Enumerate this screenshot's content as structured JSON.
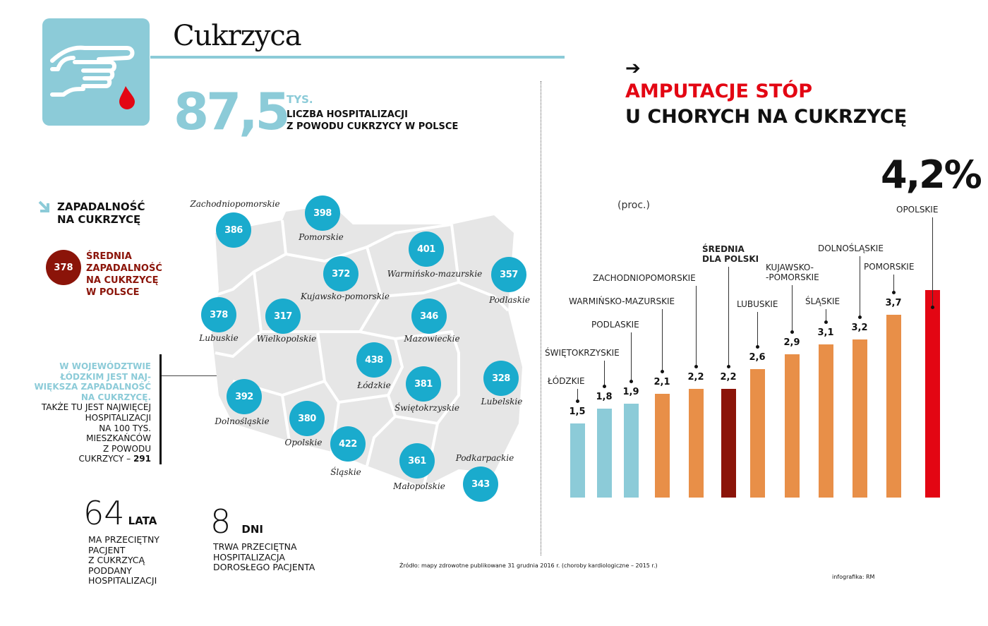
{
  "header": {
    "title": "Cukrzyca",
    "icon": "finger-blood-drop-icon"
  },
  "hospitalizations": {
    "value": "87,5",
    "unit": "TYS.",
    "desc_line1": "LICZBA HOSPITALIZACJI",
    "desc_line2": "Z POWODU CUKRZYCY W POLSCE"
  },
  "legend": {
    "title_line1": "ZAPADALNOŚĆ",
    "title_line2": "NA CUKRZYCĘ",
    "avg_value": "378",
    "avg_l1": "ŚREDNIA",
    "avg_l2": "ZAPADALNOŚĆ",
    "avg_l3": "NA CUKRZYCĘ",
    "avg_l4": "W POLSCE"
  },
  "note": {
    "hl1": "W WOJEWÓDZTWIE",
    "hl2": "ŁÓDZKIM  JEST NAJ-",
    "hl3": "WIĘKSZA ZAPADALNOŚĆ",
    "hl4": "NA CUKRZYCĘ.",
    "l1": "TAKŻE TU JEST NAJWIĘCEJ",
    "l2": "HOSPITALIZACJI",
    "l3": "NA 100 TYS.",
    "l4": "MIESZKAŃCÓW",
    "l5": "Z POWODU",
    "l6": "CUKRZYCY – ",
    "value": "291"
  },
  "stats": [
    {
      "value": "64",
      "unit": "LATA",
      "desc": [
        "MA PRZECIĘTNY",
        "PACJENT",
        "Z CUKRZYCĄ",
        "PODDANY",
        "HOSPITALIZACJI"
      ]
    },
    {
      "value": "8",
      "unit": "DNI",
      "desc": [
        "TRWA PRZECIĘTNA",
        "HOSPITALIZACJA",
        "DOROSŁEGO PACJENTA"
      ]
    }
  ],
  "regions": [
    {
      "name": "Zachodniopomorskie",
      "value": "386"
    },
    {
      "name": "Pomorskie",
      "value": "398"
    },
    {
      "name": "Warmińsko-mazurskie",
      "value": "401"
    },
    {
      "name": "Podlaskie",
      "value": "357"
    },
    {
      "name": "Kujawsko-pomorskie",
      "value": "372"
    },
    {
      "name": "Lubuskie",
      "value": "378"
    },
    {
      "name": "Wielkopolskie",
      "value": "317"
    },
    {
      "name": "Mazowieckie",
      "value": "346"
    },
    {
      "name": "Łódzkie",
      "value": "438"
    },
    {
      "name": "Świętokrzyskie",
      "value": "381"
    },
    {
      "name": "Lubelskie",
      "value": "328"
    },
    {
      "name": "Dolnośląskie",
      "value": "392"
    },
    {
      "name": "Opolskie",
      "value": "380"
    },
    {
      "name": "Śląskie",
      "value": "422"
    },
    {
      "name": "Małopolskie",
      "value": "361"
    },
    {
      "name": "Podkarpackie",
      "value": "343"
    }
  ],
  "right": {
    "arrow": "➔",
    "title_red": "AMPUTACJE STÓP",
    "title_black": "U CHORYCH NA CUKRZYCĘ",
    "top_value": "4,2%",
    "unit": "(proc.)"
  },
  "chart_data": {
    "type": "bar",
    "categories": [
      "ŁÓDZKIE",
      "ŚWIĘTOKRZYSKIE",
      "PODLASKIE",
      "WARMIŃSKO-MAZURSKIE",
      "ZACHODNIOPOMORSKIE",
      "ŚREDNIA DLA POLSKI",
      "LUBUSKIE",
      "KUJAWSKO- -POMORSKIE",
      "ŚLĄSKIE",
      "DOLNOŚLĄSKIE",
      "POMORSKIE",
      "OPOLSKIE"
    ],
    "values": [
      1.5,
      1.8,
      1.9,
      2.1,
      2.2,
      2.2,
      2.6,
      2.9,
      3.1,
      3.2,
      3.7,
      4.2
    ],
    "value_labels": [
      "1,5",
      "1,8",
      "1,9",
      "2,1",
      "2,2",
      "2,2",
      "2,6",
      "2,9",
      "3,1",
      "3,2",
      "3,7",
      "4,2%"
    ],
    "colors": [
      "#8ccbd8",
      "#8ccbd8",
      "#8ccbd8",
      "#e88f48",
      "#e88f48",
      "#8b1409",
      "#e88f48",
      "#e88f48",
      "#e88f48",
      "#e88f48",
      "#e88f48",
      "#e30613"
    ],
    "ylabel": "(proc.)",
    "grid": false
  },
  "footer": {
    "source": "Źródło: mapy zdrowotne publikowane 31 grudnia 2016 r. (choroby kardiologiczne – 2015 r.)",
    "credit": "infografika: RM"
  }
}
